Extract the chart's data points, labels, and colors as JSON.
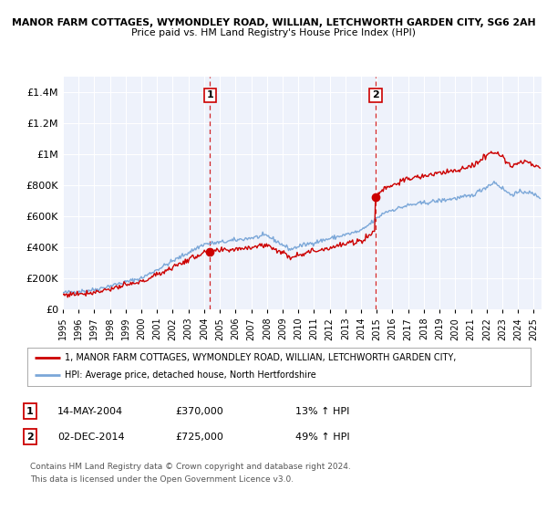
{
  "title_line1": "MANOR FARM COTTAGES, WYMONDLEY ROAD, WILLIAN, LETCHWORTH GARDEN CITY, SG6 2AH",
  "title_line2": "Price paid vs. HM Land Registry's House Price Index (HPI)",
  "legend_line1": "1, MANOR FARM COTTAGES, WYMONDLEY ROAD, WILLIAN, LETCHWORTH GARDEN CITY,",
  "legend_line2": "HPI: Average price, detached house, North Hertfordshire",
  "footnote_line1": "Contains HM Land Registry data © Crown copyright and database right 2024.",
  "footnote_line2": "This data is licensed under the Open Government Licence v3.0.",
  "sale1_label": "1",
  "sale1_date": "14-MAY-2004",
  "sale1_price_str": "£370,000",
  "sale1_hpi": "13% ↑ HPI",
  "sale1_price": 370000,
  "sale2_label": "2",
  "sale2_date": "02-DEC-2014",
  "sale2_price_str": "£725,000",
  "sale2_hpi": "49% ↑ HPI",
  "sale2_price": 725000,
  "sale1_x": 2004.37,
  "sale2_x": 2014.92,
  "ylabel_ticks": [
    "£0",
    "£200K",
    "£400K",
    "£600K",
    "£800K",
    "£1M",
    "£1.2M",
    "£1.4M"
  ],
  "ytick_values": [
    0,
    200000,
    400000,
    600000,
    800000,
    1000000,
    1200000,
    1400000
  ],
  "ylim": [
    0,
    1500000
  ],
  "xlim_start": 1995,
  "xlim_end": 2025.5,
  "background_color": "#ffffff",
  "plot_bg_color": "#eef2fb",
  "grid_color": "#ffffff",
  "hpi_line_color": "#7ba7d8",
  "price_line_color": "#cc0000",
  "vline_color": "#cc0000",
  "sale_dot_color": "#cc0000",
  "box_edge_color": "#cc0000"
}
